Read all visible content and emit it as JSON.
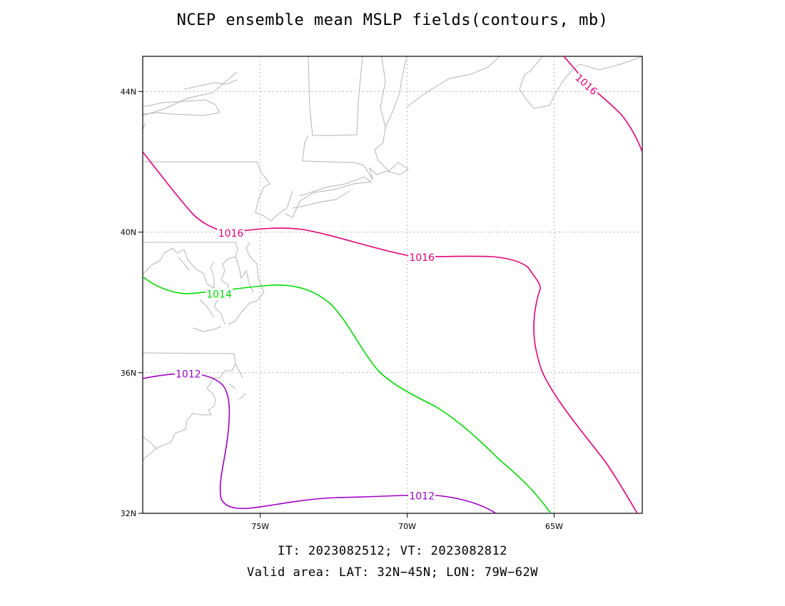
{
  "title": "NCEP ensemble mean MSLP fields(contours, mb)",
  "footer": {
    "line1": "IT: 2023082512; VT: 2023082812",
    "line2": "Valid area: LAT: 32N−45N; LON: 79W−62W"
  },
  "map": {
    "lat_range": [
      32,
      45
    ],
    "lon_range": [
      -79,
      -62
    ],
    "grid": true,
    "lat_ticks": [
      {
        "value": 44,
        "label": "44N"
      },
      {
        "value": 40,
        "label": "40N"
      },
      {
        "value": 36,
        "label": "36N"
      },
      {
        "value": 32,
        "label": "32N"
      }
    ],
    "lon_ticks": [
      {
        "value": -75,
        "label": "75W"
      },
      {
        "value": -70,
        "label": "70W"
      },
      {
        "value": -65,
        "label": "65W"
      }
    ],
    "coastline_color": "#b4b4b4"
  },
  "contours": [
    {
      "name": "1016",
      "label": "1016",
      "color": "#e6007a",
      "label_points": [
        [
          -76.0,
          39.97
        ],
        [
          -69.5,
          39.28
        ],
        [
          -63.9,
          44.2
        ]
      ]
    },
    {
      "name": "1014",
      "label": "1014",
      "color": "#00dc00",
      "label_points": [
        [
          -76.4,
          38.24
        ]
      ]
    },
    {
      "name": "1012",
      "label": "1012",
      "color": "#a000c8",
      "label_points": [
        [
          -77.45,
          35.96
        ],
        [
          -69.5,
          32.5
        ]
      ]
    }
  ]
}
